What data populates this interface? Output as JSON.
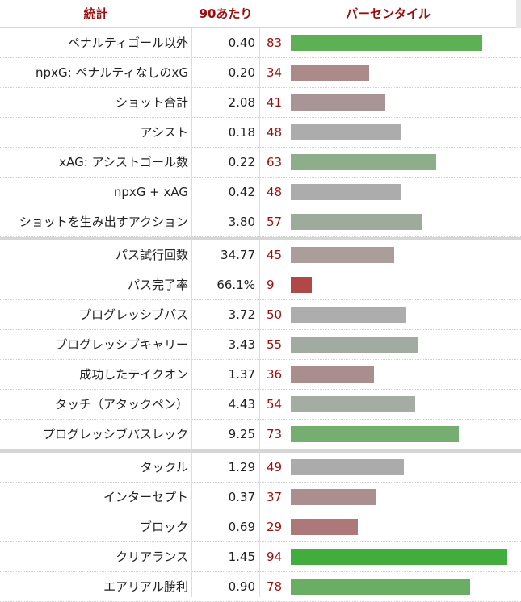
{
  "header": {
    "stat": "統計",
    "per90": "90あたり",
    "percentile": "パーセンタイル"
  },
  "chart_data": {
    "type": "bar",
    "xlim": [
      0,
      100
    ],
    "groups": [
      {
        "rows": [
          {
            "label": "ペナルティゴール以外",
            "per90": "0.40",
            "percentile": 83,
            "color": "#5db054"
          },
          {
            "label": "npxG: ペナルティなしのxG",
            "per90": "0.20",
            "percentile": 34,
            "color": "#ac8a8a"
          },
          {
            "label": "ショット合計",
            "per90": "2.08",
            "percentile": 41,
            "color": "#a99595"
          },
          {
            "label": "アシスト",
            "per90": "0.18",
            "percentile": 48,
            "color": "#acacac"
          },
          {
            "label": "xAG: アシストゴール数",
            "per90": "0.22",
            "percentile": 63,
            "color": "#8eae8b"
          },
          {
            "label": "npxG + xAG",
            "per90": "0.42",
            "percentile": 48,
            "color": "#acacac"
          },
          {
            "label": "ショットを生み出すアクション",
            "per90": "3.80",
            "percentile": 57,
            "color": "#9dab9b"
          }
        ]
      },
      {
        "rows": [
          {
            "label": "パス試行回数",
            "per90": "34.77",
            "percentile": 45,
            "color": "#ac9d9d"
          },
          {
            "label": "パス完了率",
            "per90": "66.1%",
            "percentile": 9,
            "color": "#b04848"
          },
          {
            "label": "プログレッシブパス",
            "per90": "3.72",
            "percentile": 50,
            "color": "#adadad"
          },
          {
            "label": "プログレッシブキャリー",
            "per90": "3.43",
            "percentile": 55,
            "color": "#a2aba1"
          },
          {
            "label": "成功したテイクオン",
            "per90": "1.37",
            "percentile": 36,
            "color": "#aa8e8e"
          },
          {
            "label": "タッチ（アタックペン）",
            "per90": "4.43",
            "percentile": 54,
            "color": "#a5aca4"
          },
          {
            "label": "プログレッシブパスレック",
            "per90": "9.25",
            "percentile": 73,
            "color": "#76ad70"
          }
        ]
      },
      {
        "rows": [
          {
            "label": "タックル",
            "per90": "1.29",
            "percentile": 49,
            "color": "#ababab"
          },
          {
            "label": "インターセプト",
            "per90": "0.37",
            "percentile": 37,
            "color": "#ab8f8f"
          },
          {
            "label": "ブロック",
            "per90": "0.69",
            "percentile": 29,
            "color": "#ad7878"
          },
          {
            "label": "クリアランス",
            "per90": "1.45",
            "percentile": 94,
            "color": "#41ad3d"
          },
          {
            "label": "エアリアル勝利",
            "per90": "0.90",
            "percentile": 78,
            "color": "#69ae62"
          }
        ]
      }
    ]
  }
}
